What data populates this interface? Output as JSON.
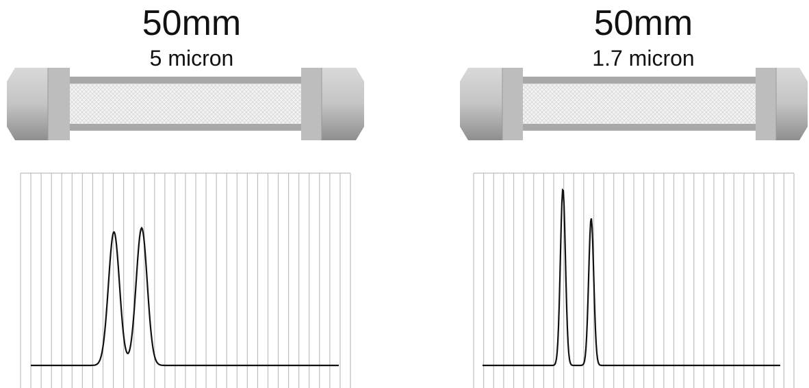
{
  "columns": [
    {
      "length_label": "50mm",
      "particle_label": "5 micron",
      "chromatogram": {
        "type": "line",
        "peaks": [
          {
            "position": 0.27,
            "height": 0.68,
            "width": 0.018
          },
          {
            "position": 0.36,
            "height": 0.7,
            "width": 0.018
          }
        ]
      }
    },
    {
      "length_label": "50mm",
      "particle_label": "1.7 micron",
      "chromatogram": {
        "type": "line",
        "peaks": [
          {
            "position": 0.27,
            "height": 0.9,
            "width": 0.0085
          },
          {
            "position": 0.365,
            "height": 0.75,
            "width": 0.0085
          }
        ]
      }
    }
  ],
  "colors": {
    "grid": "#bdbdbd",
    "trace": "#111111",
    "fitting": "#c8c8c8",
    "tube_outer": "#9a9a9a",
    "packing": "#eeeeee"
  }
}
